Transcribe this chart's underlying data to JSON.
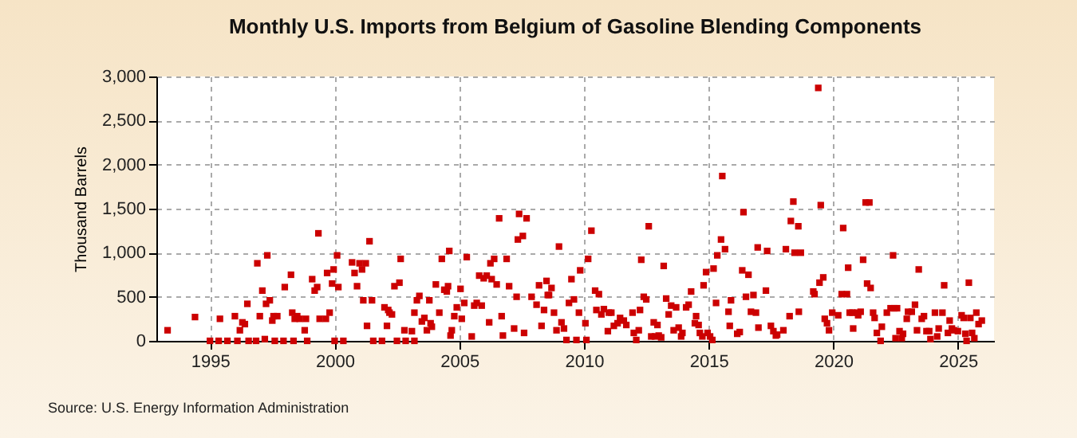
{
  "chart_data": {
    "type": "scatter",
    "title": "Monthly U.S. Imports from Belgium of Gasoline Blending Components",
    "ylabel": "Thousand Barrels",
    "annotations": [
      "Source: U.S. Energy Information Administration"
    ],
    "xlim": [
      1992.85,
      2026.45
    ],
    "xticks": [
      1995,
      2000,
      2005,
      2010,
      2015,
      2020,
      2025
    ],
    "ylim": [
      0,
      3000
    ],
    "yticks": [
      0,
      500,
      {
        "value": 1000,
        "label": "1,000"
      },
      {
        "value": 1500,
        "label": "1,500"
      },
      {
        "value": 2000,
        "label": "2,000"
      },
      {
        "value": 2500,
        "label": "2,500"
      },
      {
        "value": 3000,
        "label": "3,000"
      }
    ],
    "grid": true,
    "marker": "square",
    "legend": false,
    "series": [
      {
        "color": "#cc0000",
        "x": [
          1993.3,
          1994.4,
          1995.0,
          1995.35,
          1995.4,
          1995.7,
          1996.0,
          1996.1,
          1996.2,
          1996.3,
          1996.4,
          1996.5,
          1996.55,
          1996.85,
          1996.9,
          1997.0,
          1997.1,
          1997.2,
          1997.25,
          1997.3,
          1997.4,
          1997.5,
          1997.55,
          1997.6,
          1997.7,
          1997.95,
          1998.0,
          1998.25,
          1998.3,
          1998.35,
          1998.4,
          1998.5,
          1998.6,
          1998.85,
          1998.8,
          1998.9,
          1999.1,
          1999.2,
          1999.3,
          1999.35,
          1999.4,
          1999.65,
          1999.7,
          1999.8,
          1999.9,
          1999.96,
          2000.0,
          2000.1,
          2000.15,
          2000.35,
          2000.7,
          2000.8,
          2000.9,
          2001.0,
          2001.1,
          2001.15,
          2001.25,
          2001.3,
          2001.4,
          2001.5,
          2001.55,
          2001.9,
          2002.0,
          2002.1,
          2002.15,
          2002.2,
          2002.3,
          2002.4,
          2002.5,
          2002.6,
          2002.65,
          2002.8,
          2002.85,
          2003.1,
          2003.2,
          2003.2,
          2003.3,
          2003.4,
          2003.5,
          2003.6,
          2003.7,
          2003.8,
          2003.85,
          2003.9,
          2004.06,
          2004.2,
          2004.3,
          2004.4,
          2004.5,
          2004.55,
          2004.6,
          2004.65,
          2004.7,
          2004.8,
          2004.9,
          2005.05,
          2005.1,
          2005.2,
          2005.3,
          2005.5,
          2005.6,
          2005.7,
          2005.8,
          2005.9,
          2005.98,
          2006.1,
          2006.2,
          2006.25,
          2006.3,
          2006.4,
          2006.5,
          2006.6,
          2006.7,
          2006.75,
          2006.9,
          2007.0,
          2007.2,
          2007.3,
          2007.35,
          2007.4,
          2007.55,
          2007.6,
          2007.7,
          2007.9,
          2008.1,
          2008.2,
          2008.3,
          2008.4,
          2008.5,
          2008.55,
          2008.6,
          2008.7,
          2008.8,
          2008.9,
          2009.0,
          2009.1,
          2009.2,
          2009.3,
          2009.4,
          2009.5,
          2009.6,
          2009.7,
          2009.8,
          2009.85,
          2010.06,
          2010.1,
          2010.17,
          2010.3,
          2010.45,
          2010.5,
          2010.6,
          2010.7,
          2010.8,
          2010.96,
          2011.0,
          2011.1,
          2011.2,
          2011.35,
          2011.45,
          2011.6,
          2011.7,
          2011.95,
          2012.0,
          2012.1,
          2012.2,
          2012.25,
          2012.3,
          2012.4,
          2012.5,
          2012.6,
          2012.7,
          2012.8,
          2012.85,
          2012.95,
          2013.0,
          2013.1,
          2013.2,
          2013.3,
          2013.4,
          2013.5,
          2013.6,
          2013.7,
          2013.8,
          2013.9,
          2013.95,
          2014.1,
          2014.2,
          2014.3,
          2014.45,
          2014.5,
          2014.6,
          2014.65,
          2014.75,
          2014.8,
          2014.9,
          2014.96,
          2015.06,
          2015.15,
          2015.2,
          2015.3,
          2015.35,
          2015.5,
          2015.55,
          2015.66,
          2015.8,
          2015.85,
          2015.9,
          2016.15,
          2016.25,
          2016.35,
          2016.4,
          2016.5,
          2016.6,
          2016.7,
          2016.8,
          2016.9,
          2016.97,
          2017.0,
          2017.3,
          2017.35,
          2017.5,
          2017.6,
          2017.7,
          2017.75,
          2018.0,
          2018.1,
          2018.25,
          2018.3,
          2018.4,
          2018.45,
          2018.6,
          2018.62,
          2018.7,
          2019.2,
          2019.25,
          2019.4,
          2019.45,
          2019.5,
          2019.6,
          2019.66,
          2019.75,
          2019.83,
          2019.96,
          2020.2,
          2020.34,
          2020.4,
          2020.55,
          2020.6,
          2020.66,
          2020.77,
          2020.8,
          2020.94,
          2021.0,
          2021.1,
          2021.2,
          2021.3,
          2021.36,
          2021.45,
          2021.5,
          2021.6,
          2021.66,
          2021.75,
          2021.9,
          2021.95,
          2022.15,
          2022.3,
          2022.4,
          2022.45,
          2022.5,
          2022.56,
          2022.66,
          2022.75,
          2022.8,
          2022.95,
          2023.0,
          2023.15,
          2023.28,
          2023.36,
          2023.43,
          2023.55,
          2023.64,
          2023.74,
          2023.85,
          2023.9,
          2024.08,
          2024.17,
          2024.23,
          2024.38,
          2024.45,
          2024.6,
          2024.67,
          2024.76,
          2024.84,
          2025.0,
          2025.15,
          2025.23,
          2025.3,
          2025.35,
          2025.44,
          2025.5,
          2025.57,
          2025.66,
          2025.74,
          2025.83,
          2025.96
        ],
        "values": [
          120,
          270,
          0,
          0,
          250,
          0,
          280,
          0,
          120,
          210,
          190,
          420,
          0,
          0,
          880,
          280,
          570,
          20,
          420,
          970,
          460,
          230,
          280,
          0,
          280,
          0,
          610,
          750,
          320,
          0,
          250,
          280,
          250,
          250,
          120,
          0,
          700,
          570,
          610,
          1220,
          250,
          250,
          770,
          320,
          650,
          810,
          0,
          970,
          610,
          0,
          890,
          770,
          620,
          880,
          810,
          460,
          880,
          170,
          1130,
          460,
          0,
          0,
          380,
          170,
          350,
          320,
          300,
          620,
          0,
          660,
          930,
          120,
          0,
          110,
          0,
          320,
          460,
          510,
          220,
          260,
          120,
          460,
          200,
          160,
          640,
          320,
          930,
          580,
          560,
          620,
          1020,
          60,
          120,
          280,
          380,
          590,
          250,
          430,
          950,
          50,
          400,
          430,
          740,
          400,
          710,
          740,
          210,
          880,
          700,
          930,
          640,
          1390,
          280,
          60,
          930,
          620,
          140,
          500,
          1150,
          1440,
          1190,
          90,
          1390,
          500,
          410,
          630,
          170,
          350,
          680,
          520,
          520,
          600,
          320,
          120,
          1070,
          210,
          140,
          10,
          430,
          700,
          470,
          10,
          320,
          800,
          200,
          10,
          930,
          1250,
          570,
          350,
          530,
          300,
          360,
          110,
          320,
          320,
          170,
          200,
          260,
          230,
          180,
          320,
          90,
          10,
          120,
          350,
          920,
          500,
          470,
          1300,
          50,
          210,
          50,
          180,
          60,
          40,
          850,
          480,
          300,
          400,
          120,
          380,
          150,
          50,
          90,
          380,
          410,
          560,
          200,
          280,
          180,
          90,
          50,
          630,
          780,
          90,
          50,
          10,
          820,
          430,
          970,
          1150,
          1870,
          1040,
          330,
          170,
          460,
          80,
          100,
          800,
          1460,
          500,
          750,
          330,
          520,
          320,
          1060,
          150,
          570,
          1020,
          170,
          110,
          60,
          70,
          120,
          1040,
          280,
          1360,
          1580,
          1000,
          1300,
          330,
          1000,
          560,
          530,
          2870,
          660,
          1540,
          720,
          250,
          200,
          120,
          320,
          290,
          530,
          1280,
          530,
          830,
          320,
          320,
          140,
          320,
          290,
          330,
          920,
          1570,
          650,
          1570,
          600,
          320,
          260,
          90,
          0,
          160,
          320,
          370,
          970,
          370,
          30,
          370,
          110,
          30,
          80,
          250,
          330,
          330,
          410,
          120,
          810,
          250,
          280,
          110,
          110,
          20,
          320,
          50,
          140,
          320,
          630,
          90,
          230,
          140,
          120,
          110,
          290,
          260,
          80,
          0,
          660,
          260,
          90,
          30,
          320,
          190,
          230
        ]
      }
    ]
  }
}
